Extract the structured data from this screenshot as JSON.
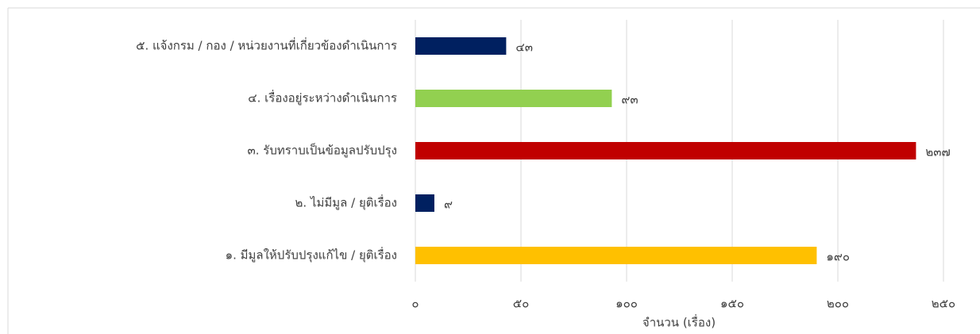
{
  "chart_data": {
    "type": "hbar",
    "categories": [
      "๕. แจ้งกรม / กอง / หน่วยงานที่เกี่ยวข้องดำเนินการ",
      "๔. เรื่องอยู่ระหว่างดำเนินการ",
      "๓. รับทราบเป็นข้อมูลปรับปรุง",
      "๒. ไม่มีมูล / ยุติเรื่อง",
      "๑. มีมูลให้ปรับปรุงแก้ไข / ยุติเรื่อง"
    ],
    "values": [
      43,
      93,
      237,
      9,
      190
    ],
    "value_labels": [
      "๔๓",
      "๙๓",
      "๒๓๗",
      "๙",
      "๑๙๐"
    ],
    "colors": [
      "#002060",
      "#92d050",
      "#c00000",
      "#002060",
      "#ffc000"
    ],
    "xlabel": "จำนวน (เรื่อง)",
    "xlim": [
      0,
      250
    ],
    "xticks": [
      {
        "value": 0,
        "label": "๐"
      },
      {
        "value": 50,
        "label": "๕๐"
      },
      {
        "value": 100,
        "label": "๑๐๐"
      },
      {
        "value": 150,
        "label": "๑๕๐"
      },
      {
        "value": 200,
        "label": "๒๐๐"
      },
      {
        "value": 250,
        "label": "๒๕๐"
      }
    ],
    "grid": true
  }
}
